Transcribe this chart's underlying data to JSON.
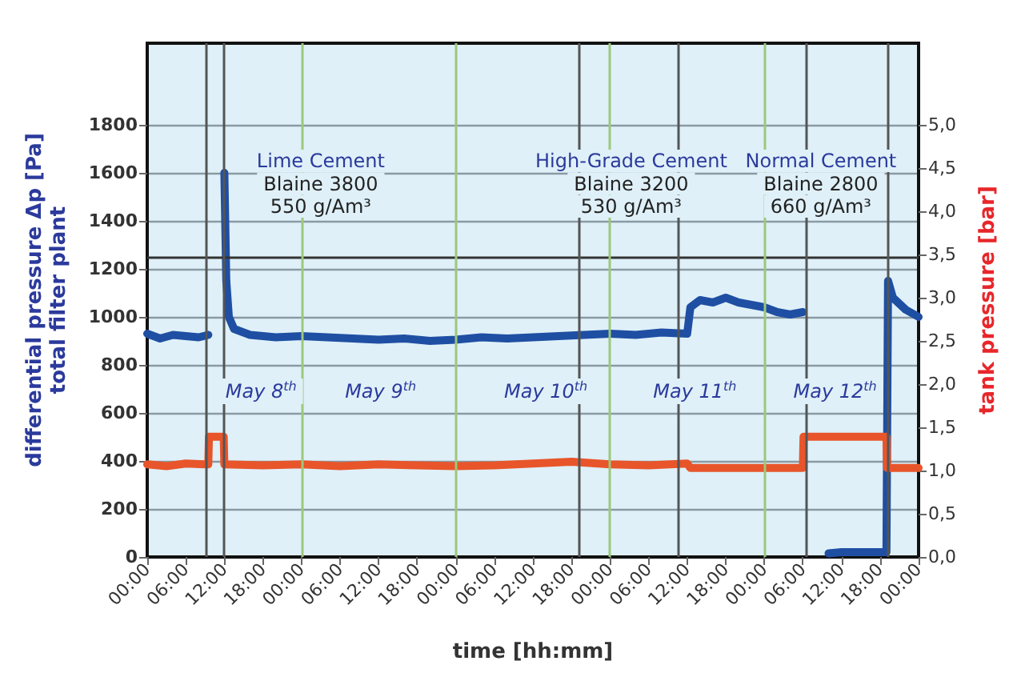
{
  "chart_data": {
    "type": "line",
    "xlabel": "time [hh:mm]",
    "ylabel": "differential pressure Δp [Pa]\ntotal filter plant",
    "y2label": "tank pressure [bar]",
    "xlim": [
      "--05-08T00:00",
      "--05-13T00:00"
    ],
    "xticks": [
      {
        "value": "--05-08T00:00",
        "label": "00:00"
      },
      {
        "value": "--05-08T06:00",
        "label": "06:00"
      },
      {
        "value": "--05-08T12:00",
        "label": "12:00"
      },
      {
        "value": "--05-08T18:00",
        "label": "18:00"
      },
      {
        "value": "--05-09T00:00",
        "label": "00:00"
      },
      {
        "value": "--05-09T06:00",
        "label": "06:00"
      },
      {
        "value": "--05-09T12:00",
        "label": "12:00"
      },
      {
        "value": "--05-09T18:00",
        "label": "18:00"
      },
      {
        "value": "--05-10T00:00",
        "label": "00:00"
      },
      {
        "value": "--05-10T06:00",
        "label": "06:00"
      },
      {
        "value": "--05-10T12:00",
        "label": "12:00"
      },
      {
        "value": "--05-10T18:00",
        "label": "18:00"
      },
      {
        "value": "--05-11T00:00",
        "label": "00:00"
      },
      {
        "value": "--05-11T06:00",
        "label": "06:00"
      },
      {
        "value": "--05-11T12:00",
        "label": "12:00"
      },
      {
        "value": "--05-11T18:00",
        "label": "18:00"
      },
      {
        "value": "--05-12T00:00",
        "label": "00:00"
      },
      {
        "value": "--05-12T06:00",
        "label": "06:00"
      },
      {
        "value": "--05-12T12:00",
        "label": "12:00"
      },
      {
        "value": "--05-12T18:00",
        "label": "18:00"
      },
      {
        "value": "--05-13T00:00",
        "label": "00:00"
      }
    ],
    "ylim": [
      0,
      2140
    ],
    "yticks": [
      0,
      200,
      400,
      600,
      800,
      1000,
      1200,
      1400,
      1600,
      1800
    ],
    "y2lim": [
      0,
      5.94
    ],
    "y2ticks": [
      {
        "value": 0,
        "label": "0,0"
      },
      {
        "value": 0.5,
        "label": "0,5"
      },
      {
        "value": 1,
        "label": "1,0"
      },
      {
        "value": 1.5,
        "label": "1,5"
      },
      {
        "value": 2,
        "label": "2,0"
      },
      {
        "value": 2.5,
        "label": "2,5"
      },
      {
        "value": 3,
        "label": "3,0"
      },
      {
        "value": 3.5,
        "label": "3,5"
      },
      {
        "value": 4,
        "label": "4,0"
      },
      {
        "value": 4.5,
        "label": "4,5"
      },
      {
        "value": 5,
        "label": "5,0"
      }
    ],
    "grid": "y",
    "marker": "none",
    "line_style": "solid",
    "series": [
      {
        "color": "#1f4fa3",
        "x": [
          "--05-08T00:00",
          "--05-08T02:00",
          "--05-08T04:00",
          "--05-08T06:00",
          "--05-08T08:00",
          "--05-08T09:30",
          "--05-08T10:30",
          "--05-08T12:00",
          "--05-08T12:18",
          "--05-08T12:42",
          "--05-08T13:30",
          "--05-08T16:00",
          "--05-08T20:00",
          "--05-09T00:00",
          "--05-09T04:00",
          "--05-09T08:00",
          "--05-09T12:00",
          "--05-09T16:00",
          "--05-09T20:00",
          "--05-10T00:00",
          "--05-10T04:00",
          "--05-10T08:00",
          "--05-10T12:00",
          "--05-10T16:00",
          "--05-10T20:00",
          "--05-11T00:00",
          "--05-11T04:00",
          "--05-11T08:00",
          "--05-11T12:00",
          "--05-11T12:30",
          "--05-11T14:00",
          "--05-11T16:00",
          "--05-11T18:00",
          "--05-11T20:00",
          "--05-11T22:00",
          "--05-12T00:00",
          "--05-12T02:00",
          "--05-12T04:00",
          "--05-12T06:00",
          "--05-12T08:00",
          "--05-12T10:00",
          "--05-12T12:00",
          "--05-12T14:00",
          "--05-12T16:00",
          "--05-12T18:00",
          "--05-12T19:00",
          "--05-12T19:15",
          "--05-12T20:00",
          "--05-12T22:00",
          "--05-13T00:00"
        ],
        "values": [
          930,
          910,
          925,
          920,
          915,
          925,
          null,
          1600,
          1150,
          1000,
          950,
          925,
          915,
          920,
          915,
          910,
          905,
          910,
          900,
          905,
          915,
          910,
          915,
          920,
          925,
          930,
          925,
          935,
          930,
          1040,
          1070,
          1060,
          1080,
          1060,
          1050,
          1040,
          1020,
          1010,
          1020,
          null,
          15,
          20,
          20,
          20,
          20,
          20,
          1150,
          1080,
          1030,
          1000
        ]
      },
      {
        "color": "#e8552a",
        "axis": "y2",
        "x": [
          "--05-08T00:00",
          "--05-08T03:00",
          "--05-08T06:00",
          "--05-08T09:30",
          "--05-08T09:36",
          "--05-08T11:54",
          "--05-08T12:00",
          "--05-08T18:00",
          "--05-09T00:00",
          "--05-09T06:00",
          "--05-09T12:00",
          "--05-09T18:00",
          "--05-10T00:00",
          "--05-10T06:00",
          "--05-10T12:00",
          "--05-10T18:00",
          "--05-11T00:00",
          "--05-11T06:00",
          "--05-11T12:00",
          "--05-11T12:30",
          "--05-12T06:00",
          "--05-12T06:06",
          "--05-12T19:00",
          "--05-12T19:06",
          "--05-13T00:00"
        ],
        "values": [
          1.07,
          1.05,
          1.08,
          1.07,
          1.39,
          1.39,
          1.07,
          1.06,
          1.07,
          1.05,
          1.07,
          1.06,
          1.05,
          1.06,
          1.08,
          1.1,
          1.07,
          1.06,
          1.08,
          1.03,
          1.03,
          1.39,
          1.39,
          1.03,
          1.03
        ]
      }
    ],
    "ref_lines": [
      {
        "axis": "y",
        "value": 1250,
        "color": "#333333"
      },
      {
        "axis": "x",
        "value": "--05-08T09:15",
        "color": "#555555"
      },
      {
        "axis": "x",
        "value": "--05-08T12:00",
        "color": "#555555"
      },
      {
        "axis": "x",
        "value": "--05-10T19:15",
        "color": "#555555"
      },
      {
        "axis": "x",
        "value": "--05-11T10:30",
        "color": "#555555"
      },
      {
        "axis": "x",
        "value": "--05-12T06:30",
        "color": "#555555"
      },
      {
        "axis": "x",
        "value": "--05-12T19:15",
        "color": "#555555"
      },
      {
        "axis": "x",
        "value": "--05-09T00:00",
        "color": "#9cc87a"
      },
      {
        "axis": "x",
        "value": "--05-10T00:00",
        "color": "#9cc87a"
      },
      {
        "axis": "x",
        "value": "--05-11T00:00",
        "color": "#9cc87a"
      },
      {
        "axis": "x",
        "value": "--05-12T00:00",
        "color": "#9cc87a"
      }
    ],
    "annotations": [
      "Lime Cement",
      "Blaine 3800",
      "550 g/Am³",
      "High-Grade Cement",
      "Blaine 3200",
      "530 g/Am³",
      "Normal Cement",
      "Blaine 2800",
      "660 g/Am³",
      "May 8$^{th}$",
      "May 9$^{th}$",
      "May 10$^{th}$",
      "May 11$^{th}$",
      "May 12$^{th}$"
    ]
  }
}
